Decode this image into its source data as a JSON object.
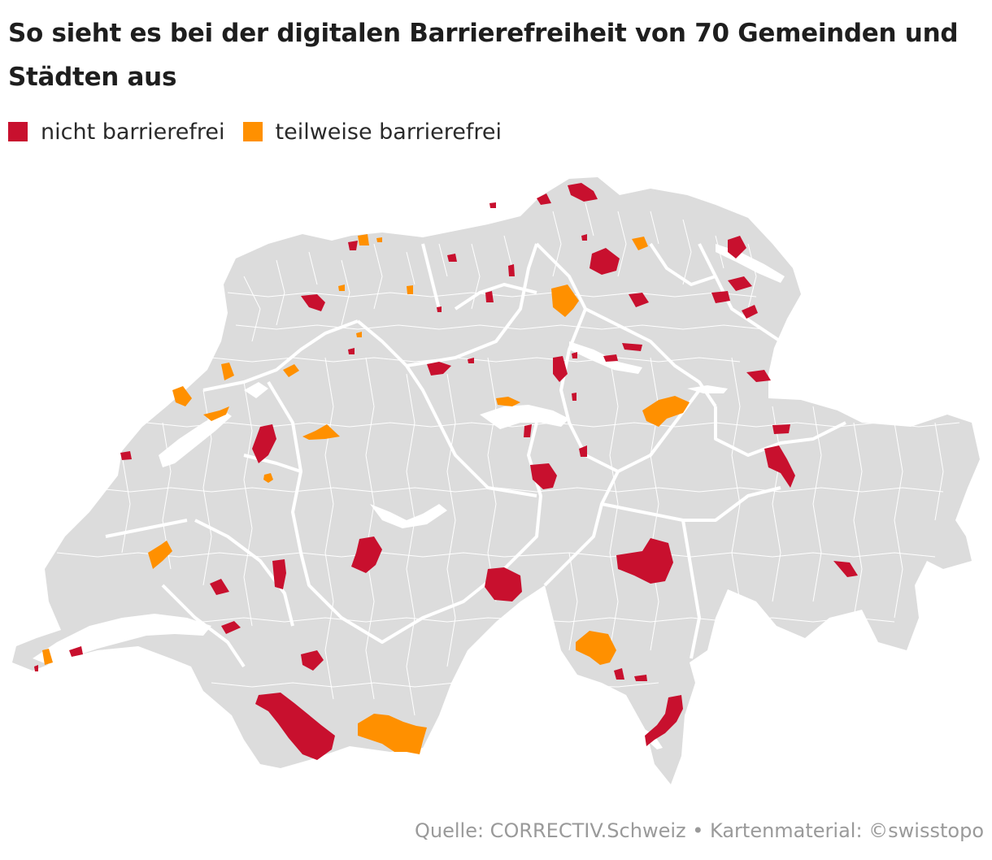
{
  "title": "So sieht es bei der digitalen Barrierefreiheit von 70 Gemeinden und Städten aus",
  "legend": [
    {
      "label": "nicht barrierefrei",
      "color": "#c8102e"
    },
    {
      "label": "teilweise barrierefrei",
      "color": "#ff9000"
    }
  ],
  "map": {
    "base_color": "#dcdcdc",
    "border_color": "#ffffff"
  },
  "source": "Quelle: CORRECTIV.Schweiz • Kartenmaterial: ©swisstopo"
}
